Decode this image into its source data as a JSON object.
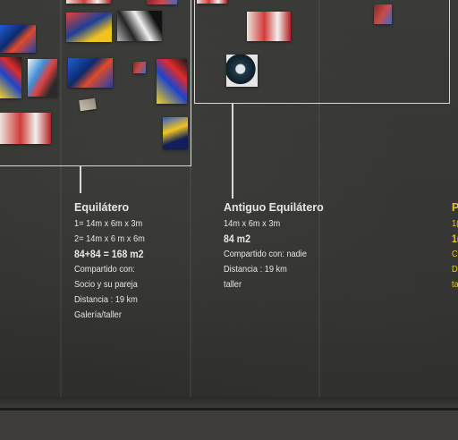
{
  "colors": {
    "wall": "#363633",
    "frame_line": "#d9d9d6",
    "text": "#e6e6e2",
    "accent_yellow": "#f0c419"
  },
  "spaces": [
    {
      "title": "Equilátero",
      "lines": [
        "1= 14m x 6m x 3m",
        "2= 14m x 6 m x 6m"
      ],
      "area": "84+84 = 168 m2",
      "details": [
        "Compartido con:",
        "Socio y su pareja",
        "Distancia : 19 km",
        "Galería/taller"
      ]
    },
    {
      "title": "Antiguo Equilátero",
      "lines": [
        "14m x 6m x 3m"
      ],
      "area": "84 m2",
      "details": [
        "Compartido con: nadie",
        "Distancia : 19 km",
        "taller"
      ]
    },
    {
      "title": "P",
      "lines": [
        "1("
      ],
      "area": "1(",
      "details": [
        "C",
        "D",
        "ta"
      ]
    }
  ]
}
